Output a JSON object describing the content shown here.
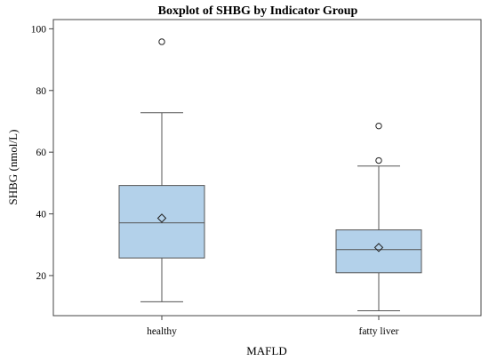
{
  "chart_data": {
    "type": "box",
    "title": "Boxplot of SHBG by Indicator Group",
    "xlabel": "MAFLD",
    "ylabel": "SHBG (nmol/L)",
    "ylim": [
      7,
      103
    ],
    "yticks": [
      20,
      40,
      60,
      80,
      100
    ],
    "grid": false,
    "categories": [
      "healthy",
      "fatty liver"
    ],
    "boxes": [
      {
        "category": "healthy",
        "min": 11.5,
        "q1": 25.7,
        "median": 37.1,
        "q3": 49.2,
        "max": 72.8,
        "mean": 38.6,
        "outliers": [
          95.8
        ]
      },
      {
        "category": "fatty liver",
        "min": 8.6,
        "q1": 20.9,
        "median": 28.4,
        "q3": 34.8,
        "max": 55.5,
        "mean": 29.1,
        "outliers": [
          57.3,
          68.5
        ]
      }
    ],
    "colors": {
      "box_fill": "#b3d1ea",
      "stroke": "#555555",
      "axis": "#444444"
    }
  }
}
